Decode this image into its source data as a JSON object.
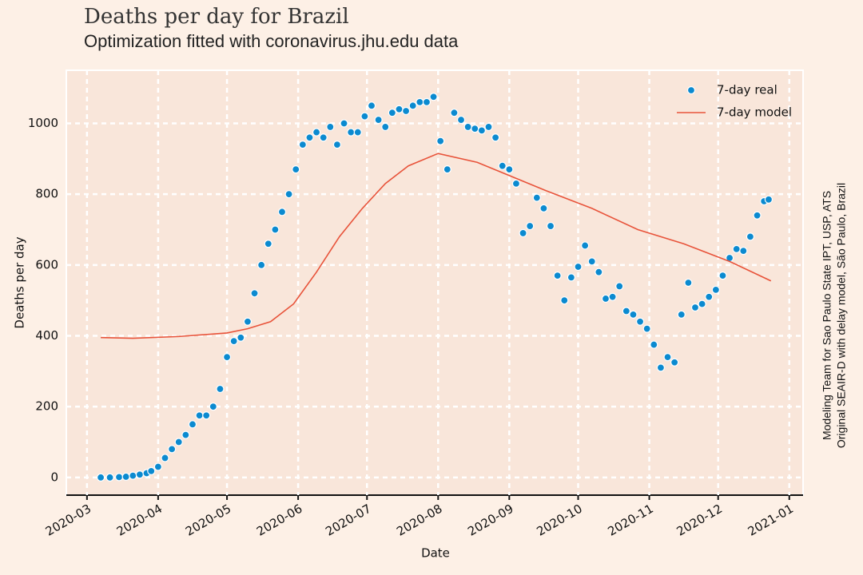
{
  "chart_data": {
    "type": "scatter",
    "title": "Deaths per day for Brazil",
    "subtitle": "Optimization fitted with coronavirus.jhu.edu data",
    "x_label": "Date",
    "y_label": "Deaths per day",
    "annotations": [
      "Modeling Team for Sao Paulo State IPT, USP, ATS",
      "Original SEAIR-D with delay model, São Paulo, Brazil"
    ],
    "xlim": [
      51,
      372
    ],
    "ylim": [
      -50,
      1150
    ],
    "xticks": [
      {
        "value": 60,
        "label": "2020-03"
      },
      {
        "value": 91,
        "label": "2020-04"
      },
      {
        "value": 121,
        "label": "2020-05"
      },
      {
        "value": 152,
        "label": "2020-06"
      },
      {
        "value": 182,
        "label": "2020-07"
      },
      {
        "value": 213,
        "label": "2020-08"
      },
      {
        "value": 244,
        "label": "2020-09"
      },
      {
        "value": 274,
        "label": "2020-10"
      },
      {
        "value": 305,
        "label": "2020-11"
      },
      {
        "value": 335,
        "label": "2020-12"
      },
      {
        "value": 366,
        "label": "2021-01"
      }
    ],
    "yticks": [
      0,
      200,
      400,
      600,
      800,
      1000
    ],
    "grid": true,
    "legend": "upper right",
    "series": [
      {
        "name": "7-day real",
        "type": "scatter",
        "color": "#0b8ad0",
        "x": [
          66,
          70,
          74,
          77,
          80,
          83,
          86,
          88,
          91,
          94,
          97,
          100,
          103,
          106,
          109,
          112,
          115,
          118,
          121,
          124,
          127,
          130,
          133,
          136,
          139,
          142,
          145,
          148,
          151,
          154,
          157,
          160,
          163,
          166,
          169,
          172,
          175,
          178,
          181,
          184,
          187,
          190,
          193,
          196,
          199,
          202,
          205,
          208,
          211,
          214,
          217,
          220,
          223,
          226,
          229,
          232,
          235,
          238,
          241,
          244,
          247,
          250,
          253,
          256,
          259,
          262,
          265,
          268,
          271,
          274,
          277,
          280,
          283,
          286,
          289,
          292,
          295,
          298,
          301,
          304,
          307,
          310,
          313,
          316,
          319,
          322,
          325,
          328,
          331,
          334,
          337,
          340,
          343,
          346,
          349,
          352,
          355,
          357
        ],
        "values": [
          0,
          0,
          1,
          2,
          5,
          8,
          12,
          18,
          30,
          55,
          80,
          100,
          120,
          150,
          175,
          175,
          200,
          250,
          340,
          385,
          395,
          440,
          520,
          600,
          660,
          700,
          750,
          800,
          870,
          940,
          960,
          975,
          960,
          990,
          940,
          1000,
          975,
          975,
          1020,
          1050,
          1010,
          990,
          1030,
          1040,
          1035,
          1050,
          1060,
          1060,
          1075,
          950,
          870,
          1030,
          1010,
          990,
          985,
          980,
          990,
          960,
          880,
          870,
          830,
          690,
          710,
          790,
          760,
          710,
          570,
          500,
          565,
          595,
          655,
          610,
          580,
          505,
          510,
          540,
          470,
          460,
          440,
          420,
          375,
          310,
          340,
          325,
          460,
          550,
          480,
          490,
          510,
          530,
          570,
          620,
          645,
          640,
          680,
          740,
          780,
          785
        ]
      },
      {
        "name": "7-day model",
        "type": "line",
        "color": "#e8533a",
        "x": [
          66,
          80,
          100,
          121,
          130,
          140,
          150,
          160,
          170,
          180,
          190,
          200,
          213,
          230,
          245,
          260,
          280,
          300,
          320,
          340,
          358
        ],
        "values": [
          395,
          393,
          398,
          408,
          420,
          440,
          490,
          580,
          680,
          760,
          830,
          880,
          915,
          890,
          850,
          810,
          760,
          700,
          660,
          610,
          555
        ]
      }
    ]
  }
}
